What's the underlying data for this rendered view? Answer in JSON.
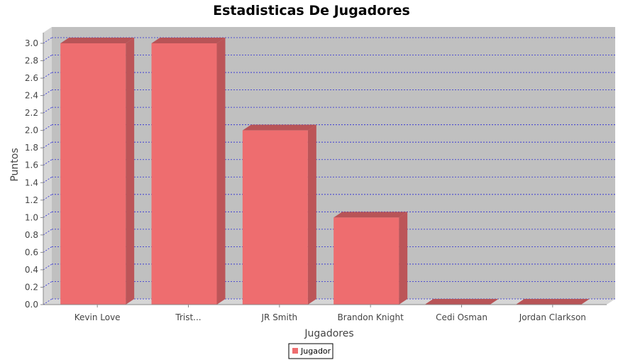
{
  "chart_data": {
    "type": "bar",
    "title": "Estadisticas De Jugadores",
    "xlabel": "Jugadores",
    "ylabel": "Puntos",
    "categories": [
      "Kevin Love",
      "Trist...",
      "JR Smith",
      "Brandon Knight",
      "Cedi Osman",
      "Jordan Clarkson"
    ],
    "series": [
      {
        "name": "Jugador",
        "values": [
          3,
          3,
          2,
          1,
          0,
          0
        ]
      }
    ],
    "ylim": [
      0,
      3.0
    ],
    "yticks": [
      "0.0",
      "0.2",
      "0.4",
      "0.6",
      "0.8",
      "1.0",
      "1.2",
      "1.4",
      "1.6",
      "1.8",
      "2.0",
      "2.2",
      "2.4",
      "2.6",
      "2.8",
      "3.0"
    ],
    "grid": true,
    "legend_position": "bottom",
    "colors": {
      "bar_front": "#ee6d6f",
      "bar_top": "#b85457",
      "bar_side": "#bc5558",
      "plot_bg": "#c0c0c0",
      "wall": "#d6d6d6",
      "grid": "#2929d6",
      "legend_swatch": "#ee6d6f"
    }
  }
}
